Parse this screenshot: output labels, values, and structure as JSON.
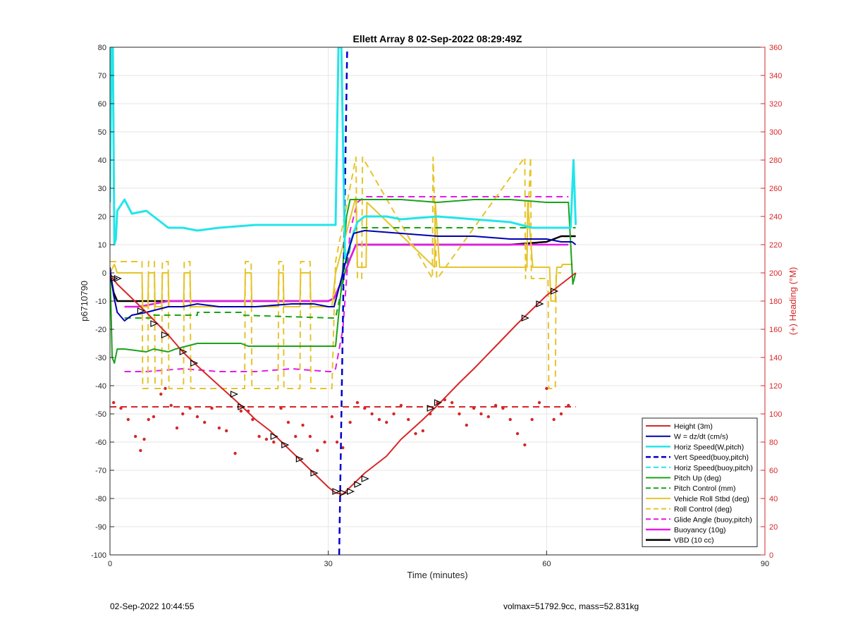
{
  "footer": {
    "left": "02-Sep-2022 10:44:55",
    "right": "volmax=51792.9cc, mass=52.831kg"
  },
  "colors": {
    "red": "#d62728",
    "blue": "#0000b0",
    "cyan": "#22e5ea",
    "green": "#1aa31a",
    "yellow": "#e6c42a",
    "magenta": "#e619e6",
    "black": "#000000",
    "grid": "#e6e6e6"
  },
  "chart_data": {
    "type": "line",
    "title": "Ellett Array 8 02-Sep-2022 08:29:49Z",
    "xlabel": "Time (minutes)",
    "ylabel": "p6710790",
    "ylabel_right": "(+) Heading (°M)",
    "xlim": [
      0,
      90
    ],
    "ylim": [
      -100,
      80
    ],
    "ylim_right": [
      0,
      360
    ],
    "xticks": [
      0,
      30,
      60,
      90
    ],
    "yticks": [
      -100,
      -90,
      -80,
      -70,
      -60,
      -50,
      -40,
      -30,
      -20,
      -10,
      0,
      10,
      20,
      30,
      40,
      50,
      60,
      70,
      80
    ],
    "yticks_right": [
      0,
      20,
      40,
      60,
      80,
      100,
      120,
      140,
      160,
      180,
      200,
      220,
      240,
      260,
      280,
      300,
      320,
      340,
      360
    ],
    "grid": true,
    "legend_position": "bottom-right",
    "series": [
      {
        "name": "Height (3m)",
        "color": "#d62728",
        "style": "solid",
        "width": 2,
        "x": [
          0,
          0.4,
          1,
          3,
          5,
          8,
          10,
          12,
          15,
          18,
          20,
          22,
          24,
          26,
          28,
          30,
          31,
          32,
          33,
          35,
          38,
          40,
          43,
          45,
          48,
          50,
          53,
          56,
          58,
          60,
          62,
          64
        ],
        "y": [
          -1,
          -2,
          -4,
          -9,
          -14,
          -22,
          -28,
          -33,
          -40,
          -47,
          -52,
          -56,
          -61,
          -66,
          -71,
          -76,
          -78,
          -78.5,
          -76,
          -71,
          -65,
          -59,
          -52,
          -47,
          -39,
          -34,
          -26,
          -18,
          -13,
          -8,
          -4,
          0
        ]
      },
      {
        "name": "W = dz/dt (cm/s)",
        "color": "#0000b0",
        "style": "solid",
        "width": 2,
        "x": [
          0,
          0.5,
          1,
          2,
          3,
          5,
          8,
          10,
          12,
          15,
          20,
          25,
          28,
          30,
          30.8,
          32,
          33,
          33.5,
          35,
          40,
          45,
          50,
          55,
          60,
          62,
          63.5,
          64
        ],
        "y": [
          2,
          -8,
          -14,
          -17,
          -15,
          -14,
          -12,
          -12,
          -11,
          -12,
          -12,
          -11,
          -11,
          -12,
          -12,
          0,
          10,
          14,
          15,
          14,
          13,
          13,
          12,
          12,
          11,
          11,
          10
        ]
      },
      {
        "name": "Horiz Speed(W,pitch)",
        "color": "#22e5ea",
        "style": "solid",
        "width": 3,
        "x": [
          0,
          0.2,
          0.4,
          0.6,
          0.8,
          1,
          2,
          3,
          5,
          7,
          8,
          10,
          12,
          15,
          20,
          25,
          28,
          30,
          31,
          31.4,
          31.8,
          32.3,
          32.8,
          33.2,
          34,
          35,
          38,
          40,
          45,
          50,
          55,
          58,
          60,
          62,
          63.3,
          63.7,
          64
        ],
        "y": [
          25,
          80,
          80,
          10,
          12,
          22,
          26,
          21,
          22,
          18,
          16,
          16,
          15,
          16,
          17,
          17,
          17,
          17,
          17,
          80,
          80,
          5,
          8,
          12,
          18,
          20,
          20,
          19,
          20,
          19,
          18,
          16,
          16,
          16,
          16,
          40,
          17
        ]
      },
      {
        "name": "Vert Speed(buoy,pitch)",
        "color": "#0000cc",
        "style": "dashed",
        "width": 2.5,
        "x": [
          31.5,
          32.6
        ],
        "y": [
          -100,
          80
        ]
      },
      {
        "name": "Horiz Speed(buoy,pitch)",
        "color": "#22e5ea",
        "style": "dashed",
        "width": 2,
        "x": [],
        "y": []
      },
      {
        "name": "Pitch Up (deg)",
        "color": "#1aa31a",
        "style": "solid",
        "width": 2,
        "x": [
          0,
          0.3,
          0.6,
          1,
          2,
          5,
          6,
          8,
          9,
          12,
          14,
          18,
          19,
          25,
          27,
          30,
          31,
          31.8,
          32.5,
          33,
          34,
          35,
          40,
          45,
          50,
          55,
          60,
          63,
          63.6,
          64
        ],
        "y": [
          2,
          -30,
          -32,
          -27,
          -27,
          -28,
          -27,
          -28,
          -27,
          -25,
          -25,
          -25,
          -26,
          -26,
          -26,
          -26,
          -26,
          -5,
          20,
          26,
          26,
          26,
          26,
          25,
          26,
          26,
          25,
          25,
          -4,
          0
        ]
      },
      {
        "name": "Pitch Control (mm)",
        "color": "#1aa31a",
        "style": "dashed",
        "width": 2,
        "x": [
          2,
          6,
          6.01,
          12,
          12.01,
          18,
          18.01,
          30.5,
          31,
          33.5,
          34,
          64
        ],
        "y": [
          -16,
          -16,
          -15,
          -15,
          -14,
          -14,
          -15,
          -16,
          -16,
          15,
          16,
          16
        ]
      },
      {
        "name": "Vehicle Roll Stbd (deg)",
        "color": "#e6c42a",
        "style": "solid",
        "width": 2,
        "x": [
          0,
          0.6,
          1,
          4.4,
          4.5,
          5.2,
          5.3,
          6.1,
          6.2,
          7.1,
          7.2,
          8,
          8.1,
          10.1,
          10.2,
          11,
          11.1,
          18.5,
          18.6,
          19.4,
          19.5,
          23.1,
          23.2,
          23.8,
          23.9,
          26.1,
          26.2,
          27.5,
          27.6,
          30.5,
          31,
          33.8,
          34,
          35.2,
          35.3,
          44.6,
          44.7,
          45.3,
          45.4,
          57.3,
          57.4,
          58.1,
          58.2,
          60.4,
          60.6,
          61.2,
          61.4,
          62,
          62.2,
          63.6
        ],
        "y": [
          0,
          3,
          0,
          0,
          -12,
          -12,
          0,
          0,
          -12,
          -12,
          0,
          0,
          -12,
          -12,
          0,
          0,
          -12,
          -12,
          0,
          0,
          -12,
          -12,
          0,
          0,
          -12,
          -12,
          0,
          0,
          -12,
          -12,
          0,
          27,
          2,
          2,
          25,
          2,
          25,
          2,
          2,
          2,
          25,
          2,
          2,
          2,
          -10,
          -10,
          2,
          2,
          3,
          3
        ]
      },
      {
        "name": "Roll Control (deg)",
        "color": "#e6c42a",
        "style": "dashed",
        "width": 2,
        "x": [
          0,
          4.4,
          4.5,
          5.2,
          5.3,
          6.1,
          6.2,
          7.1,
          7.2,
          8,
          8.1,
          10.1,
          10.2,
          11,
          11.1,
          18.5,
          18.6,
          19.4,
          19.5,
          23.1,
          23.2,
          23.8,
          23.9,
          26.1,
          26.2,
          27.5,
          27.6,
          30.5,
          31,
          33.8,
          34,
          34.6,
          34.7,
          44.3,
          44.4,
          44.9,
          45,
          57,
          57.1,
          57.8,
          57.9,
          60.2,
          60.3,
          61.2,
          61.3,
          62
        ],
        "y": [
          4,
          4,
          -41,
          -41,
          4,
          4,
          -41,
          -41,
          4,
          4,
          -41,
          -41,
          4,
          4,
          -41,
          -41,
          4,
          4,
          -41,
          -41,
          4,
          4,
          -41,
          -41,
          4,
          4,
          -41,
          -41,
          4,
          41,
          -2,
          -2,
          41,
          -2,
          41,
          -2,
          -2,
          41,
          -2,
          41,
          -2,
          -2,
          -41,
          -41,
          0,
          0
        ]
      },
      {
        "name": "Glide Angle (buoy,pitch)",
        "color": "#e619e6",
        "style": "dashed",
        "width": 2,
        "x": [
          2,
          5,
          10,
          15,
          20,
          25,
          30,
          30.5,
          31,
          32,
          33,
          34,
          35,
          40,
          45,
          50,
          55,
          60,
          63
        ],
        "y": [
          -35,
          -35,
          -34,
          -35,
          -35,
          -34,
          -35,
          -35,
          -34,
          -20,
          15,
          25,
          27,
          27,
          27,
          27,
          27,
          27,
          27
        ]
      },
      {
        "name": "Buoyancy (10g)",
        "color": "#e619e6",
        "style": "solid",
        "width": 2.5,
        "x": [
          2,
          4,
          6,
          8,
          10,
          15,
          20,
          25,
          30,
          30.8,
          32,
          33,
          33.8,
          34.5,
          40,
          45,
          50,
          55,
          60,
          63
        ],
        "y": [
          -12,
          -12,
          -11,
          -10,
          -10,
          -10,
          -10,
          -10,
          -10,
          -9,
          -2,
          5,
          10,
          10,
          10,
          10,
          10,
          10,
          10,
          10
        ]
      },
      {
        "name": "VBD (10 cc)",
        "color": "#000000",
        "style": "solid",
        "width": 2.5,
        "x": [
          0,
          0.5,
          1,
          2,
          5,
          10,
          20,
          30,
          30.8,
          32,
          33,
          33.8,
          34.5,
          40,
          50,
          55,
          60,
          62,
          64
        ],
        "y": [
          0,
          -7,
          -10,
          -10,
          -10,
          -10,
          -10,
          -10,
          -9,
          -2,
          5,
          10,
          10,
          10,
          10,
          10,
          11,
          13,
          13
        ]
      }
    ],
    "heading_series": {
      "name": "Heading",
      "color": "#d62728",
      "mean_line": {
        "y_right": 105,
        "x": [
          0,
          64
        ]
      },
      "x": [
        0.5,
        1.5,
        2.5,
        3.5,
        4.2,
        4.7,
        5.3,
        6,
        7,
        7.6,
        8.4,
        9.2,
        10,
        11,
        12,
        13,
        14,
        15,
        16,
        17.2,
        18,
        19,
        19.6,
        20.5,
        21.5,
        22.5,
        23.5,
        24.5,
        25.5,
        26.5,
        27.5,
        28.5,
        29.5,
        30.5,
        31.2,
        32,
        33,
        34,
        35,
        36,
        37,
        38,
        39,
        40,
        41,
        42,
        43,
        44,
        45,
        46,
        47,
        48,
        49,
        50,
        51,
        52,
        53,
        54,
        55,
        56,
        57,
        58,
        59,
        60,
        61,
        62,
        63
      ],
      "y_right": [
        108,
        104,
        96,
        84,
        74,
        82,
        96,
        98,
        114,
        118,
        106,
        90,
        100,
        104,
        98,
        94,
        104,
        90,
        88,
        72,
        102,
        102,
        96,
        84,
        82,
        80,
        104,
        94,
        84,
        92,
        84,
        74,
        80,
        98,
        80,
        76,
        94,
        108,
        104,
        100,
        96,
        94,
        100,
        106,
        96,
        86,
        88,
        100,
        108,
        110,
        108,
        100,
        92,
        104,
        100,
        98,
        106,
        104,
        96,
        86,
        78,
        96,
        108,
        118,
        96,
        100,
        106
      ]
    },
    "height_markers": {
      "x": [
        0.5,
        1,
        4.2,
        6,
        7.5,
        10,
        11.5,
        17,
        18,
        22.5,
        24,
        26,
        28,
        31,
        32,
        33,
        34,
        35,
        44,
        45,
        57,
        59,
        61
      ],
      "y": [
        -2,
        -2,
        -13.5,
        -18,
        -22,
        -28,
        -32,
        -43,
        -47.5,
        -58,
        -61,
        -66,
        -71,
        -77.5,
        -78,
        -77.5,
        -75,
        -73,
        -48,
        -46,
        -16,
        -11,
        -6.5
      ]
    }
  }
}
